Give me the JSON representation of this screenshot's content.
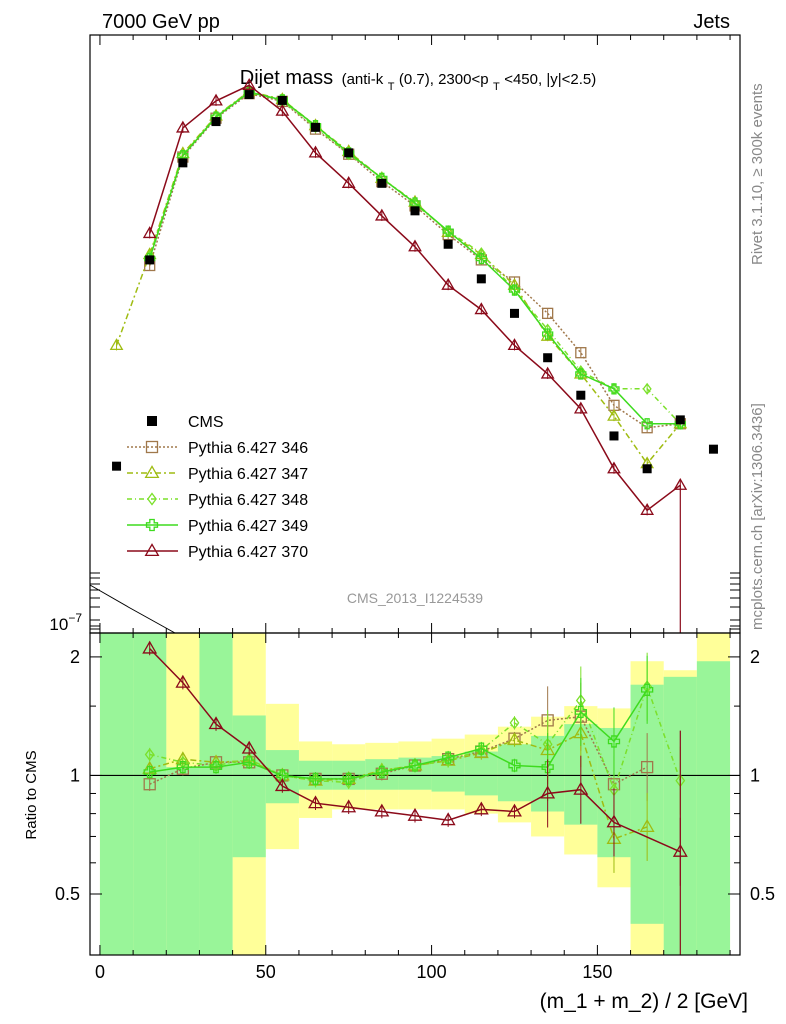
{
  "header": {
    "left": "7000 GeV pp",
    "right": "Jets"
  },
  "title": {
    "main": "Dijet mass",
    "sub_prefix": "(anti-k",
    "sub_t1": "T",
    "sub_mid": "(0.7), 2300<p",
    "sub_t2": "T",
    "sub_suffix": "<450, |y|<2.5)"
  },
  "watermark": "CMS_2013_I1224539",
  "side_text": {
    "rivet": "Rivet 3.1.10, ≥ 300k events",
    "mcplots": "mcplots.cern.ch [arXiv:1306.3436]"
  },
  "colors": {
    "cms": "#000000",
    "p346": "#a0784b",
    "p347": "#9fbc12",
    "p348": "#7be02a",
    "p349": "#3edb1e",
    "p370": "#8b0a1a",
    "band_inner": "#99f599",
    "band_outer": "#ffff99"
  },
  "chart_data": [
    {
      "type": "line",
      "panel": "main",
      "xlabel": "(m_1 + m_2) / 2 [GeV]",
      "xlim": [
        -3,
        193
      ],
      "y_scale": "log",
      "y_tick_labels": [
        "10^-7"
      ],
      "legend_placement": "left",
      "legend": [
        "CMS",
        "Pythia 6.427 346",
        "Pythia 6.427 347",
        "Pythia 6.427 348",
        "Pythia 6.427 349",
        "Pythia 6.427 370"
      ],
      "x": [
        5,
        15,
        25,
        35,
        45,
        55,
        65,
        75,
        85,
        95,
        105,
        115,
        125,
        135,
        145,
        155,
        165,
        175,
        185
      ],
      "series": [
        {
          "name": "CMS",
          "marker": "square",
          "values": [
            0.305,
            1.14,
            2.12,
            2.76,
            3.28,
            3.16,
            2.66,
            2.26,
            1.86,
            1.56,
            1.26,
            1.01,
            0.81,
            0.61,
            0.48,
            0.37,
            0.3,
            0.41,
            0.34
          ]
        },
        {
          "name": "Pythia 6.427 346",
          "marker": "square-open",
          "values": [
            null,
            1.1,
            2.2,
            2.82,
            3.3,
            3.14,
            2.63,
            2.24,
            1.88,
            1.61,
            1.34,
            1.14,
            0.99,
            0.81,
            0.63,
            0.45,
            0.39,
            0.4,
            null
          ]
        },
        {
          "name": "Pythia 6.427 347",
          "marker": "triangle-open",
          "values": [
            0.66,
            1.18,
            2.25,
            2.86,
            3.35,
            3.18,
            2.69,
            2.28,
            1.92,
            1.65,
            1.36,
            1.18,
            0.97,
            0.7,
            0.55,
            0.42,
            0.31,
            0.4,
            null
          ]
        },
        {
          "name": "Pythia 6.427 348",
          "marker": "diamond-open",
          "values": [
            null,
            1.17,
            2.23,
            2.85,
            3.34,
            3.15,
            2.66,
            2.24,
            1.93,
            1.63,
            1.37,
            1.19,
            0.94,
            0.73,
            0.56,
            0.5,
            0.5,
            0.4,
            null
          ]
        },
        {
          "name": "Pythia 6.427 349",
          "marker": "cross-open",
          "values": [
            null,
            1.15,
            2.22,
            2.84,
            3.33,
            3.17,
            2.69,
            2.26,
            1.92,
            1.64,
            1.37,
            1.15,
            0.94,
            0.71,
            0.55,
            0.5,
            0.4,
            0.4,
            null
          ]
        },
        {
          "name": "Pythia 6.427 370",
          "marker": "triangle-open",
          "values": [
            null,
            1.35,
            2.65,
            3.15,
            3.48,
            2.95,
            2.26,
            1.86,
            1.51,
            1.24,
            0.97,
            0.83,
            0.66,
            0.55,
            0.44,
            0.3,
            0.23,
            0.27,
            null
          ]
        }
      ]
    },
    {
      "type": "line",
      "panel": "ratio",
      "xlabel": "(m_1 + m_2) / 2 [GeV]",
      "ylabel": "Ratio to CMS",
      "xlim": [
        -3,
        193
      ],
      "ylim": [
        0.35,
        2.3
      ],
      "y_scale": "log",
      "x_ticks": [
        0,
        50,
        100,
        150
      ],
      "y_ticks": [
        0.5,
        1,
        2
      ],
      "reference": 1,
      "bands": {
        "edges": [
          0,
          10,
          20,
          30,
          40,
          50,
          60,
          70,
          80,
          90,
          100,
          110,
          120,
          130,
          140,
          150,
          160,
          170,
          180,
          190
        ],
        "inner": [
          [
            0.35,
            2.3
          ],
          [
            0.35,
            2.3
          ],
          [
            0.35,
            1.05
          ],
          [
            0.35,
            2.3
          ],
          [
            0.62,
            1.42
          ],
          [
            0.85,
            1.16
          ],
          [
            0.92,
            1.09
          ],
          [
            0.92,
            1.09
          ],
          [
            0.92,
            1.1
          ],
          [
            0.92,
            1.11
          ],
          [
            0.91,
            1.12
          ],
          [
            0.89,
            1.15
          ],
          [
            0.86,
            1.2
          ],
          [
            0.81,
            1.26
          ],
          [
            0.75,
            1.35
          ],
          [
            0.62,
            1.32
          ],
          [
            0.42,
            1.7
          ],
          [
            0.35,
            1.78
          ],
          [
            0.35,
            1.95
          ]
        ],
        "outer": [
          [
            0.35,
            2.3
          ],
          [
            0.35,
            2.3
          ],
          [
            0.35,
            2.3
          ],
          [
            0.35,
            2.3
          ],
          [
            0.35,
            2.3
          ],
          [
            0.65,
            1.52
          ],
          [
            0.78,
            1.22
          ],
          [
            0.82,
            1.2
          ],
          [
            0.82,
            1.21
          ],
          [
            0.82,
            1.22
          ],
          [
            0.82,
            1.24
          ],
          [
            0.8,
            1.27
          ],
          [
            0.76,
            1.33
          ],
          [
            0.7,
            1.41
          ],
          [
            0.63,
            1.5
          ],
          [
            0.52,
            1.48
          ],
          [
            0.35,
            1.95
          ],
          [
            0.35,
            1.85
          ],
          [
            0.35,
            2.3
          ]
        ]
      },
      "series": [
        {
          "name": "Pythia 6.427 346",
          "values": [
            null,
            0.95,
            1.04,
            1.08,
            1.08,
            1.0,
            0.98,
            0.98,
            1.01,
            1.06,
            1.1,
            1.15,
            1.24,
            1.38,
            1.41,
            0.95,
            1.05,
            null,
            null
          ]
        },
        {
          "name": "Pythia 6.427 347",
          "values": [
            null,
            1.04,
            1.1,
            1.08,
            1.09,
            1.0,
            0.97,
            0.98,
            1.03,
            1.06,
            1.09,
            1.14,
            1.23,
            1.16,
            1.28,
            0.69,
            0.74,
            null,
            null
          ]
        },
        {
          "name": "Pythia 6.427 348",
          "values": [
            null,
            1.13,
            1.08,
            1.06,
            1.1,
            1.0,
            0.97,
            0.96,
            1.03,
            1.06,
            1.09,
            1.16,
            1.36,
            1.2,
            1.55,
            0.92,
            1.68,
            0.97,
            null
          ]
        },
        {
          "name": "Pythia 6.427 349",
          "values": [
            null,
            1.02,
            1.05,
            1.05,
            1.08,
            1.0,
            0.98,
            0.98,
            1.02,
            1.06,
            1.11,
            1.17,
            1.06,
            1.05,
            1.45,
            1.22,
            1.65,
            null,
            null
          ]
        },
        {
          "name": "Pythia 6.427 370",
          "values": [
            null,
            2.1,
            1.72,
            1.35,
            1.17,
            0.94,
            0.85,
            0.83,
            0.81,
            0.79,
            0.77,
            0.82,
            0.81,
            0.9,
            0.92,
            0.76,
            null,
            0.64,
            null
          ]
        }
      ]
    }
  ]
}
